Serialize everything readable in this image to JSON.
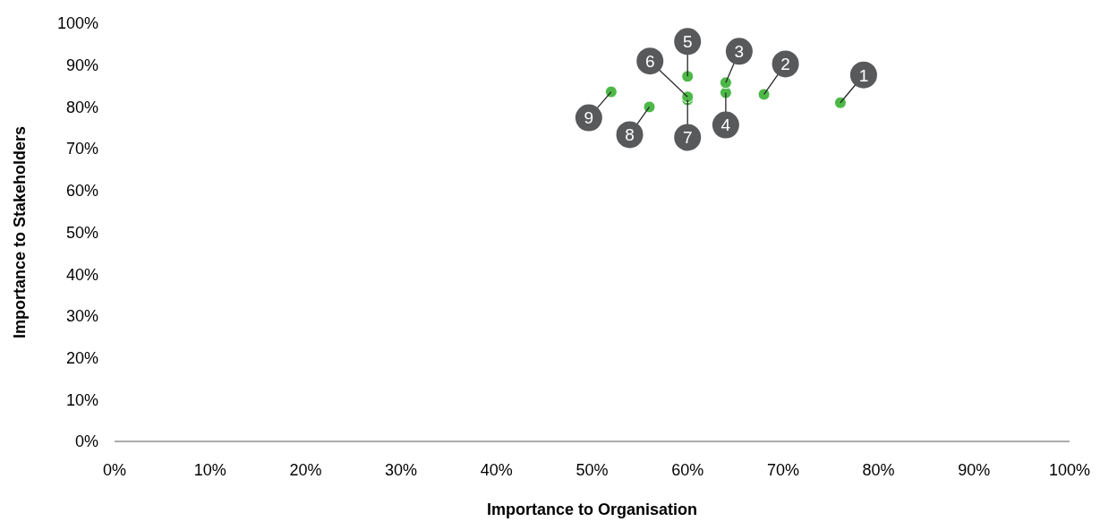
{
  "chart_data": {
    "type": "scatter",
    "xlabel": "Importance to Organisation",
    "ylabel": "Importance to Stakeholders",
    "x": [
      76,
      68,
      64,
      64,
      60,
      60,
      60,
      56,
      52
    ],
    "series": [
      {
        "color": "#4db848",
        "values": [
          81,
          83,
          85.8,
          83.4,
          87.3,
          82.4,
          81.7,
          80,
          83.6
        ]
      }
    ],
    "xlim": [
      0,
      100
    ],
    "ylim": [
      0,
      100
    ],
    "xticks": [
      {
        "value": 0,
        "label": "0%"
      },
      {
        "value": 10,
        "label": "10%"
      },
      {
        "value": 20,
        "label": "20%"
      },
      {
        "value": 30,
        "label": "30%"
      },
      {
        "value": 40,
        "label": "40%"
      },
      {
        "value": 50,
        "label": "50%"
      },
      {
        "value": 60,
        "label": "60%"
      },
      {
        "value": 70,
        "label": "70%"
      },
      {
        "value": 80,
        "label": "80%"
      },
      {
        "value": 90,
        "label": "90%"
      },
      {
        "value": 100,
        "label": "100%"
      }
    ],
    "yticks": [
      {
        "value": 0,
        "label": "0%"
      },
      {
        "value": 10,
        "label": "10%"
      },
      {
        "value": 20,
        "label": "20%"
      },
      {
        "value": 30,
        "label": "30%"
      },
      {
        "value": 40,
        "label": "40%"
      },
      {
        "value": 50,
        "label": "50%"
      },
      {
        "value": 60,
        "label": "60%"
      },
      {
        "value": 70,
        "label": "70%"
      },
      {
        "value": 80,
        "label": "80%"
      },
      {
        "value": 90,
        "label": "90%"
      },
      {
        "value": 100,
        "label": "100%"
      }
    ],
    "grid": false,
    "marker": "circle",
    "annotations": [
      {
        "text": "1",
        "x": 76,
        "y": 81
      },
      {
        "text": "2",
        "x": 68,
        "y": 83
      },
      {
        "text": "3",
        "x": 64,
        "y": 85.8
      },
      {
        "text": "4",
        "x": 64,
        "y": 83.4
      },
      {
        "text": "5",
        "x": 60,
        "y": 87.3
      },
      {
        "text": "6",
        "x": 60,
        "y": 82.4
      },
      {
        "text": "7",
        "x": 60,
        "y": 81.7
      },
      {
        "text": "8",
        "x": 56,
        "y": 80
      },
      {
        "text": "9",
        "x": 52,
        "y": 83.6
      }
    ]
  }
}
